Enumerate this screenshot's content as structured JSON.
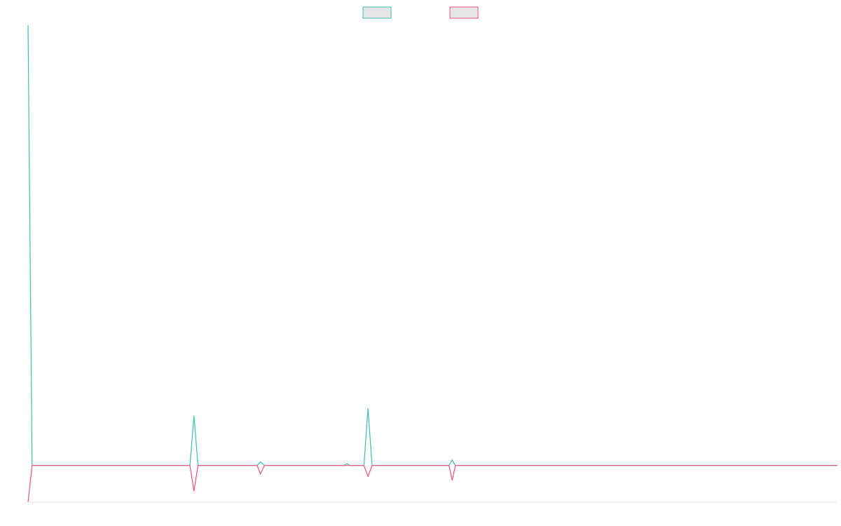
{
  "chart_data": {
    "type": "line",
    "title": "",
    "xlabel": "",
    "ylabel": "",
    "grid": false,
    "legend_position": "top-center",
    "ylim": [
      -10,
      120
    ],
    "xlim": [
      0,
      100
    ],
    "series": [
      {
        "color": "#3bbfad",
        "legend_fill": "#e6e6e6",
        "points": [
          [
            0,
            120
          ],
          [
            0.5,
            0
          ],
          [
            1,
            0
          ],
          [
            20,
            0
          ],
          [
            20.5,
            13.5
          ],
          [
            21,
            0
          ],
          [
            28.3,
            0
          ],
          [
            28.7,
            1
          ],
          [
            29.2,
            0
          ],
          [
            39,
            0
          ],
          [
            39.4,
            0.5
          ],
          [
            39.8,
            0
          ],
          [
            41.5,
            0
          ],
          [
            42,
            15.5
          ],
          [
            42.5,
            0
          ],
          [
            52,
            0
          ],
          [
            52.4,
            1.5
          ],
          [
            52.8,
            0
          ],
          [
            100,
            0
          ]
        ]
      },
      {
        "color": "#ee4f7a",
        "legend_fill": "#e6e6e6",
        "points": [
          [
            0,
            -10
          ],
          [
            0.5,
            0
          ],
          [
            1,
            0
          ],
          [
            20,
            0
          ],
          [
            20.5,
            -7
          ],
          [
            21,
            0
          ],
          [
            28.3,
            0
          ],
          [
            28.7,
            -2.3
          ],
          [
            29.2,
            0
          ],
          [
            39,
            0
          ],
          [
            39.4,
            0
          ],
          [
            39.8,
            0
          ],
          [
            41.5,
            0
          ],
          [
            42,
            -3
          ],
          [
            42.5,
            0
          ],
          [
            52,
            0
          ],
          [
            52.4,
            -4
          ],
          [
            52.8,
            0
          ],
          [
            100,
            0
          ]
        ]
      }
    ]
  }
}
